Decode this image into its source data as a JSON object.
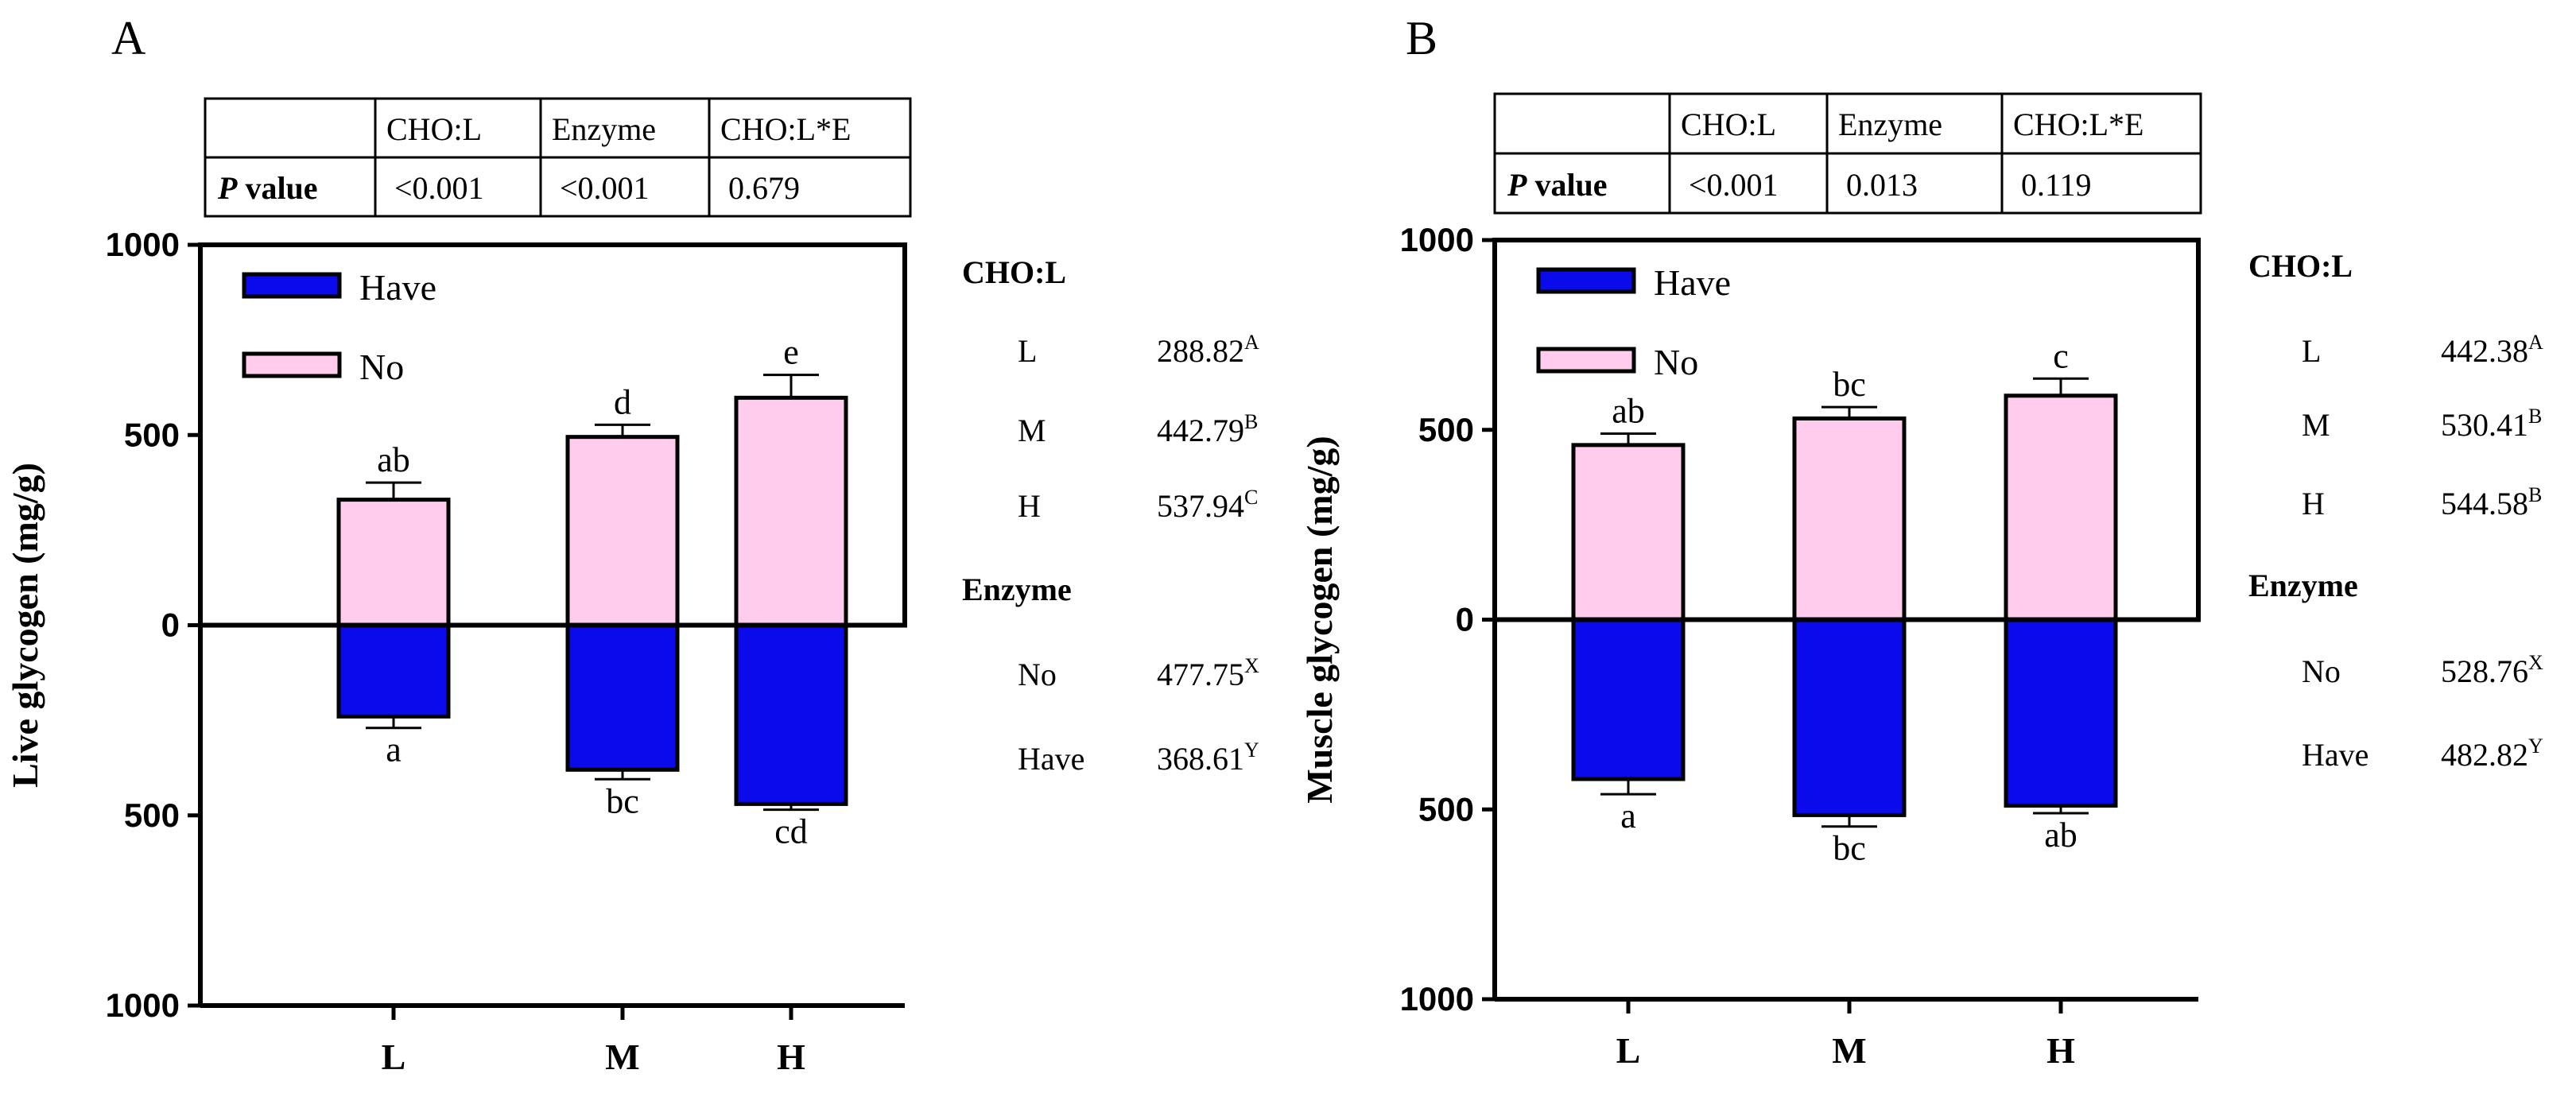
{
  "chart_data": [
    {
      "type": "bar",
      "panel_label": "A",
      "ylabel": "Live glycogen (mg/g)",
      "ylim": [
        -1000,
        1000
      ],
      "yticks": [
        {
          "value": 1000,
          "label": "1000"
        },
        {
          "value": 500,
          "label": "500"
        },
        {
          "value": 0,
          "label": "0"
        },
        {
          "value": -500,
          "label": "500"
        },
        {
          "value": -1000,
          "label": "1000"
        }
      ],
      "categories": [
        "L",
        "M",
        "H"
      ],
      "legend": [
        {
          "name": "Have",
          "color": "#0A0AEB"
        },
        {
          "name": "No",
          "color": "#FFCCEE"
        }
      ],
      "series": [
        {
          "name": "No",
          "values": [
            330,
            495,
            598
          ],
          "errors": [
            45,
            32,
            60
          ],
          "letters": [
            "ab",
            "d",
            "e"
          ]
        },
        {
          "name": "Have",
          "values": [
            -240,
            -380,
            -470
          ],
          "errors": [
            30,
            25,
            15
          ],
          "letters": [
            "a",
            "bc",
            "cd"
          ]
        }
      ],
      "pvalue_table": {
        "headers": [
          "",
          "CHO:L",
          "Enzyme",
          "CHO:L*E"
        ],
        "row_label_bold": "P",
        "row_label_rest": " value",
        "values": [
          "<0.001",
          "<0.001",
          "0.679"
        ]
      },
      "means": {
        "cho_title": "CHO:L",
        "cho": [
          {
            "label": "L",
            "value": "288.82",
            "sup": "A"
          },
          {
            "label": "M",
            "value": "442.79",
            "sup": "B"
          },
          {
            "label": "H",
            "value": "537.94",
            "sup": "C"
          }
        ],
        "enzyme_title": "Enzyme",
        "enzyme": [
          {
            "label": "No",
            "value": "477.75",
            "sup": "X"
          },
          {
            "label": "Have",
            "value": "368.61",
            "sup": "Y"
          }
        ]
      }
    },
    {
      "type": "bar",
      "panel_label": "B",
      "ylabel": "Muscle glycogen (mg/g)",
      "ylim": [
        -1000,
        1000
      ],
      "yticks": [
        {
          "value": 1000,
          "label": "1000"
        },
        {
          "value": 500,
          "label": "500"
        },
        {
          "value": 0,
          "label": "0"
        },
        {
          "value": -500,
          "label": "500"
        },
        {
          "value": -1000,
          "label": "1000"
        }
      ],
      "categories": [
        "L",
        "M",
        "H"
      ],
      "legend": [
        {
          "name": "Have",
          "color": "#0A0AEB"
        },
        {
          "name": "No",
          "color": "#FFCCEE"
        }
      ],
      "series": [
        {
          "name": "No",
          "values": [
            460,
            530,
            590
          ],
          "errors": [
            30,
            30,
            45
          ],
          "letters": [
            "ab",
            "bc",
            "c"
          ]
        },
        {
          "name": "Have",
          "values": [
            -420,
            -515,
            -490
          ],
          "errors": [
            40,
            30,
            20
          ],
          "letters": [
            "a",
            "bc",
            "ab"
          ]
        }
      ],
      "pvalue_table": {
        "headers": [
          "",
          "CHO:L",
          "Enzyme",
          "CHO:L*E"
        ],
        "row_label_bold": "P",
        "row_label_rest": " value",
        "values": [
          "<0.001",
          "0.013",
          "0.119"
        ]
      },
      "means": {
        "cho_title": "CHO:L",
        "cho": [
          {
            "label": "L",
            "value": "442.38",
            "sup": "A"
          },
          {
            "label": "M",
            "value": "530.41",
            "sup": "B"
          },
          {
            "label": "H",
            "value": "544.58",
            "sup": "B"
          }
        ],
        "enzyme_title": "Enzyme",
        "enzyme": [
          {
            "label": "No",
            "value": "528.76",
            "sup": "X"
          },
          {
            "label": "Have",
            "value": "482.82",
            "sup": "Y"
          }
        ]
      }
    }
  ]
}
